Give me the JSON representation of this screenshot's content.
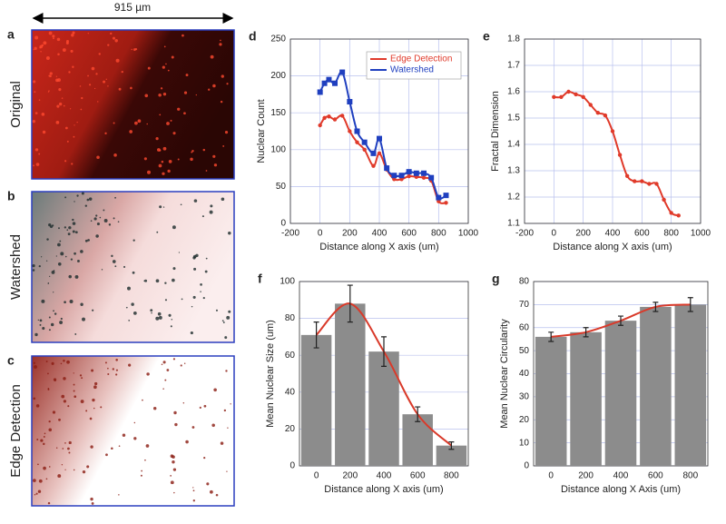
{
  "figure": {
    "scale_label": "915 µm",
    "panels": [
      {
        "letter": "a",
        "name": "Original"
      },
      {
        "letter": "b",
        "name": "Watershed"
      },
      {
        "letter": "c",
        "name": "Edge Detection"
      }
    ]
  },
  "chart_data": [
    {
      "type": "line",
      "panel_label": "d",
      "x_label": "Distance along X axis (um)",
      "y_label": "Nuclear Count",
      "x": [
        0,
        30,
        60,
        100,
        150,
        200,
        250,
        300,
        360,
        400,
        450,
        500,
        550,
        600,
        650,
        700,
        750,
        800,
        850
      ],
      "series": [
        {
          "name": "Edge Detection",
          "color": "#e03a2a",
          "marker": "circle",
          "values": [
            133,
            143,
            145,
            141,
            146,
            125,
            110,
            100,
            78,
            95,
            73,
            60,
            60,
            64,
            63,
            62,
            58,
            30,
            28
          ]
        },
        {
          "name": "Watershed",
          "color": "#1f3fbf",
          "marker": "square",
          "values": [
            178,
            190,
            195,
            190,
            205,
            165,
            125,
            110,
            95,
            115,
            75,
            65,
            65,
            70,
            68,
            68,
            62,
            35,
            38
          ]
        }
      ],
      "xlim": [
        -200,
        1000
      ],
      "xticks": [
        -200,
        0,
        200,
        400,
        600,
        800,
        1000
      ],
      "ylim": [
        0,
        250
      ],
      "yticks": [
        0,
        50,
        100,
        150,
        200,
        250
      ],
      "grid": true,
      "legend": "top-right"
    },
    {
      "type": "line",
      "panel_label": "e",
      "x_label": "Distance along X axis (um)",
      "y_label": "Fractal Dimension",
      "x": [
        0,
        50,
        100,
        150,
        200,
        250,
        300,
        350,
        400,
        450,
        500,
        550,
        600,
        650,
        700,
        750,
        800,
        850
      ],
      "series": [
        {
          "color": "#e03a2a",
          "marker": "circle",
          "values": [
            1.58,
            1.58,
            1.6,
            1.59,
            1.58,
            1.55,
            1.52,
            1.51,
            1.45,
            1.36,
            1.28,
            1.26,
            1.26,
            1.25,
            1.25,
            1.19,
            1.14,
            1.13
          ]
        }
      ],
      "xlim": [
        -200,
        1000
      ],
      "xticks": [
        -200,
        0,
        200,
        400,
        600,
        800,
        1000
      ],
      "ylim": [
        1.1,
        1.8
      ],
      "yticks": [
        1.1,
        1.2,
        1.3,
        1.4,
        1.5,
        1.6,
        1.7,
        1.8
      ],
      "grid": true
    },
    {
      "type": "bar",
      "panel_label": "f",
      "x_label": "Distance along X axis (um)",
      "y_label": "Mean Nuclear Size (um)",
      "categories": [
        "0",
        "200",
        "400",
        "600",
        "800"
      ],
      "values": [
        71,
        88,
        62,
        28,
        11
      ],
      "errors": [
        7,
        10,
        8,
        4,
        2
      ],
      "color": "#8c8c8c",
      "fit_color": "#d93a2a",
      "ylim": [
        0,
        100
      ],
      "yticks": [
        0,
        20,
        40,
        60,
        80,
        100
      ],
      "grid": true
    },
    {
      "type": "bar",
      "panel_label": "g",
      "x_label": "Distance along X Axis (um)",
      "y_label": "Mean Nuclear Circularity",
      "categories": [
        "0",
        "200",
        "400",
        "600",
        "800"
      ],
      "values": [
        56,
        58,
        63,
        69,
        70
      ],
      "errors": [
        2,
        2,
        2,
        2,
        3
      ],
      "color": "#8c8c8c",
      "fit_color": "#d93a2a",
      "ylim": [
        0,
        80
      ],
      "yticks": [
        0,
        10,
        20,
        30,
        40,
        50,
        60,
        70,
        80
      ],
      "grid": true
    }
  ]
}
